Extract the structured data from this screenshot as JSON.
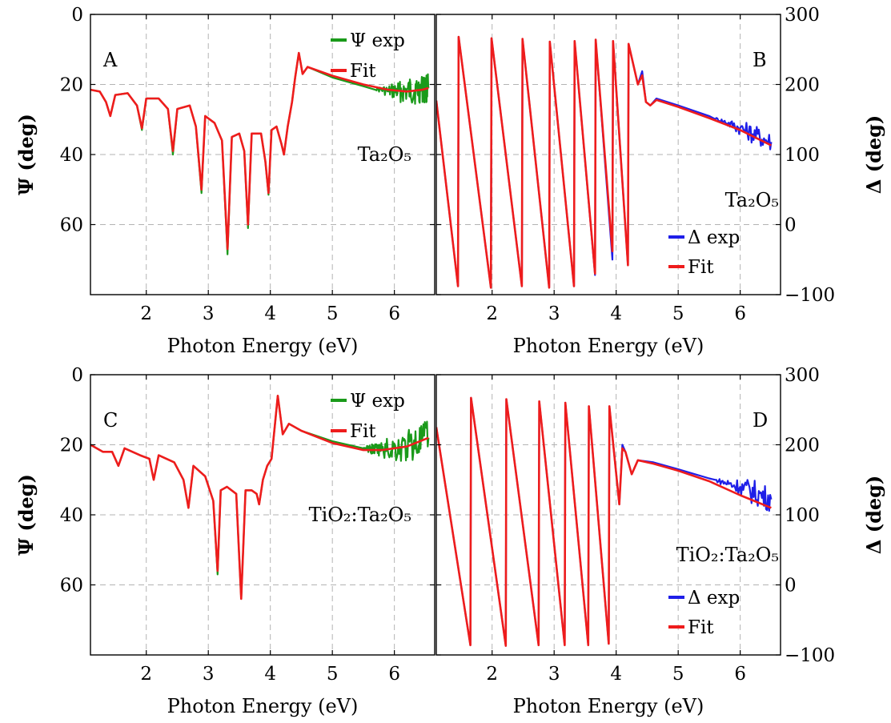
{
  "colors": {
    "psi_exp": "#1a9a1a",
    "delta_exp": "#1f1fe8",
    "fit": "#ee1c1c"
  },
  "chart_data": [
    {
      "panel": "A",
      "type": "line",
      "material": "Ta₂O₅",
      "xlabel": "Photon Energy (eV)",
      "ylabel": "Ψ (deg)",
      "xlim": [
        1.1,
        6.65
      ],
      "ylim": [
        0,
        80
      ],
      "y_reversed": true,
      "xticks": [
        2,
        3,
        4,
        5,
        6
      ],
      "yticks": [
        0,
        20,
        40,
        60
      ],
      "legend": [
        "Ψ exp",
        "Fit"
      ],
      "legend_position": "top-right",
      "grid": true,
      "series": [
        {
          "name": "Ψ exp",
          "role": "exp",
          "noise_start": 5.7,
          "noise_amp": 4,
          "x": [
            1.1,
            1.25,
            1.35,
            1.42,
            1.5,
            1.7,
            1.85,
            1.93,
            2.0,
            2.2,
            2.35,
            2.43,
            2.5,
            2.7,
            2.8,
            2.89,
            2.95,
            3.1,
            3.22,
            3.31,
            3.38,
            3.5,
            3.58,
            3.64,
            3.7,
            3.85,
            3.92,
            3.97,
            4.02,
            4.1,
            4.18,
            4.22,
            4.28,
            4.35,
            4.4,
            4.46,
            4.52,
            4.6,
            5.0,
            5.5,
            5.9,
            6.2,
            6.45,
            6.55
          ],
          "y": [
            21.5,
            22,
            25,
            29,
            23,
            22.5,
            26,
            33,
            24,
            24,
            27,
            40,
            27,
            26,
            32,
            51,
            29,
            31,
            36,
            68.5,
            35,
            34,
            39,
            61,
            34,
            34,
            42,
            51.5,
            33,
            32,
            37,
            40,
            32,
            25,
            18,
            11,
            17,
            15,
            18,
            20.5,
            22,
            22,
            21.5,
            21
          ]
        },
        {
          "name": "Fit",
          "role": "fit",
          "x": [
            1.1,
            1.25,
            1.35,
            1.42,
            1.5,
            1.7,
            1.85,
            1.93,
            2.0,
            2.2,
            2.35,
            2.43,
            2.5,
            2.7,
            2.8,
            2.89,
            2.95,
            3.1,
            3.22,
            3.31,
            3.38,
            3.5,
            3.58,
            3.64,
            3.7,
            3.85,
            3.92,
            3.97,
            4.02,
            4.1,
            4.18,
            4.22,
            4.28,
            4.35,
            4.4,
            4.46,
            4.52,
            4.6,
            5.0,
            5.5,
            5.9,
            6.2,
            6.45,
            6.55
          ],
          "y": [
            21.5,
            22,
            25,
            29,
            23,
            22.5,
            26,
            32.5,
            24,
            24,
            27,
            39,
            27,
            26,
            32,
            50,
            29,
            31,
            36,
            67,
            35,
            34,
            39,
            60,
            34,
            34,
            42,
            51,
            33,
            32,
            37,
            40,
            32,
            25,
            18,
            11,
            17,
            15,
            17.5,
            20,
            21.5,
            22,
            21.5,
            21
          ]
        }
      ]
    },
    {
      "panel": "B",
      "type": "line",
      "material": "Ta₂O₅",
      "xlabel": "Photon Energy (eV)",
      "ylabel": "Δ (deg)",
      "xlim": [
        1.1,
        6.65
      ],
      "ylim": [
        -100,
        300
      ],
      "xticks": [
        2,
        3,
        4,
        5,
        6
      ],
      "yticks": [
        -100,
        0,
        100,
        200,
        300
      ],
      "legend": [
        "Δ exp",
        "Fit"
      ],
      "legend_position": "bottom-right",
      "grid": true,
      "series": [
        {
          "name": "Δ exp",
          "role": "exp",
          "noise_start": 5.6,
          "noise_amp": 14,
          "x": [
            1.1,
            1.45,
            1.46,
            1.98,
            1.99,
            2.48,
            2.49,
            2.92,
            2.93,
            3.32,
            3.33,
            3.66,
            3.67,
            3.94,
            3.95,
            4.19,
            4.2,
            4.35,
            4.42,
            4.48,
            4.55,
            4.65,
            5.0,
            5.5,
            6.0,
            6.5
          ],
          "y": [
            177,
            -88,
            268,
            -90,
            266,
            -88,
            265,
            -90,
            261,
            -88,
            262,
            -72,
            264,
            -50,
            262,
            -58,
            258,
            200,
            219,
            175,
            170,
            180,
            170,
            155,
            138,
            118
          ]
        },
        {
          "name": "Fit",
          "role": "fit",
          "x": [
            1.1,
            1.45,
            1.46,
            1.98,
            1.99,
            2.48,
            2.49,
            2.92,
            2.93,
            3.32,
            3.33,
            3.66,
            3.67,
            3.94,
            3.95,
            4.19,
            4.2,
            4.35,
            4.42,
            4.48,
            4.55,
            4.65,
            5.0,
            5.5,
            6.0,
            6.5
          ],
          "y": [
            177,
            -88,
            268,
            -90,
            266,
            -88,
            265,
            -90,
            261,
            -88,
            262,
            -70,
            264,
            -38,
            262,
            -58,
            258,
            200,
            213,
            175,
            170,
            178,
            168,
            152,
            135,
            113
          ]
        }
      ]
    },
    {
      "panel": "C",
      "type": "line",
      "material": "TiO₂:Ta₂O₅",
      "xlabel": "Photon Energy (eV)",
      "ylabel": "Ψ (deg)",
      "xlim": [
        1.1,
        6.65
      ],
      "ylim": [
        0,
        80
      ],
      "y_reversed": true,
      "xticks": [
        2,
        3,
        4,
        5,
        6
      ],
      "yticks": [
        0,
        20,
        40,
        60
      ],
      "legend": [
        "Ψ exp",
        "Fit"
      ],
      "legend_position": "top-right",
      "grid": true,
      "series": [
        {
          "name": "Ψ exp",
          "role": "exp",
          "noise_start": 5.5,
          "noise_amp": 5,
          "x": [
            1.1,
            1.3,
            1.45,
            1.55,
            1.65,
            1.9,
            2.05,
            2.12,
            2.2,
            2.45,
            2.6,
            2.68,
            2.76,
            2.95,
            3.08,
            3.15,
            3.2,
            3.3,
            3.45,
            3.53,
            3.6,
            3.7,
            3.78,
            3.82,
            3.88,
            3.95,
            4.02,
            4.12,
            4.2,
            4.3,
            4.5,
            5.0,
            5.5,
            5.8,
            6.2,
            6.55
          ],
          "y": [
            20,
            22,
            22,
            26,
            21,
            23,
            24,
            30,
            23,
            25,
            30,
            38,
            26,
            29,
            36,
            57,
            33,
            32,
            34,
            64,
            33,
            33,
            34,
            37,
            30,
            26,
            24,
            6,
            17,
            14,
            16,
            19,
            21,
            21.5,
            20.5,
            18
          ]
        },
        {
          "name": "Fit",
          "role": "fit",
          "x": [
            1.1,
            1.3,
            1.45,
            1.55,
            1.65,
            1.9,
            2.05,
            2.12,
            2.2,
            2.45,
            2.6,
            2.68,
            2.76,
            2.95,
            3.08,
            3.15,
            3.2,
            3.3,
            3.45,
            3.53,
            3.6,
            3.7,
            3.78,
            3.82,
            3.88,
            3.95,
            4.02,
            4.12,
            4.2,
            4.3,
            4.5,
            5.0,
            5.5,
            5.8,
            6.2,
            6.55
          ],
          "y": [
            20,
            22,
            22,
            26,
            21,
            23,
            24,
            30,
            23,
            25,
            30,
            38,
            26,
            29,
            36,
            56,
            33,
            32,
            34,
            64,
            33,
            33,
            34,
            37,
            30,
            26,
            24,
            6,
            17,
            14,
            16,
            19.5,
            21.5,
            21.5,
            20.5,
            18
          ]
        }
      ]
    },
    {
      "panel": "D",
      "type": "line",
      "material": "TiO₂:Ta₂O₅",
      "xlabel": "Photon Energy (eV)",
      "ylabel": "Δ (deg)",
      "xlim": [
        1.1,
        6.65
      ],
      "ylim": [
        -100,
        300
      ],
      "xticks": [
        2,
        3,
        4,
        5,
        6
      ],
      "yticks": [
        -100,
        0,
        100,
        200,
        300
      ],
      "legend": [
        "Δ exp",
        "Fit"
      ],
      "legend_position": "bottom-right",
      "grid": true,
      "series": [
        {
          "name": "Δ exp",
          "role": "exp",
          "noise_start": 5.6,
          "noise_amp": 18,
          "x": [
            1.1,
            1.65,
            1.66,
            2.22,
            2.23,
            2.75,
            2.76,
            3.17,
            3.18,
            3.55,
            3.56,
            3.88,
            3.89,
            4.05,
            4.1,
            4.15,
            4.25,
            4.35,
            4.6,
            5.0,
            5.5,
            6.0,
            6.5
          ],
          "y": [
            225,
            -86,
            267,
            -87,
            265,
            -86,
            262,
            -86,
            260,
            -86,
            255,
            -84,
            255,
            115,
            200,
            190,
            158,
            178,
            175,
            165,
            152,
            140,
            122
          ]
        },
        {
          "name": "Fit",
          "role": "fit",
          "x": [
            1.1,
            1.65,
            1.66,
            2.22,
            2.23,
            2.75,
            2.76,
            3.17,
            3.18,
            3.55,
            3.56,
            3.88,
            3.89,
            4.05,
            4.1,
            4.15,
            4.25,
            4.35,
            4.6,
            5.0,
            5.5,
            6.0,
            6.5
          ],
          "y": [
            225,
            -86,
            267,
            -87,
            265,
            -86,
            262,
            -86,
            260,
            -86,
            255,
            -84,
            255,
            115,
            195,
            190,
            158,
            178,
            173,
            163,
            148,
            128,
            110
          ]
        }
      ]
    }
  ]
}
